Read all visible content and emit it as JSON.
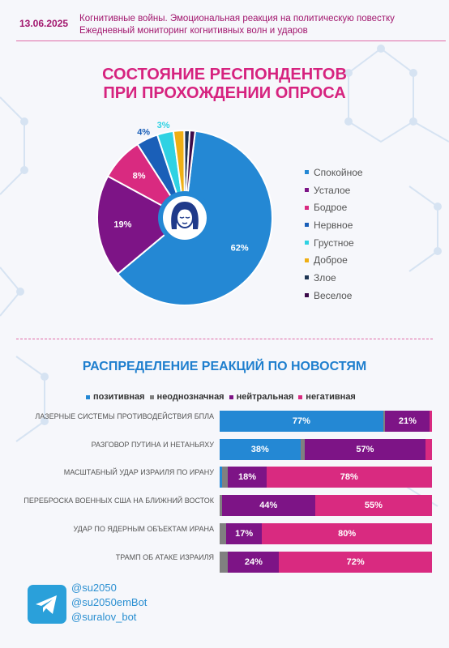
{
  "header": {
    "date": "13.06.2025",
    "line1": "Когнитивные войны. Эмоциональная реакция на политическую повестку",
    "line2": "Ежедневный мониторинг когнитивных волн и ударов"
  },
  "colors": {
    "blue": "#2488d4",
    "purple": "#7d1486",
    "pink": "#d92a80",
    "gray": "#808080",
    "navy": "#1a5fb8",
    "cyan": "#2fd2e3",
    "yellow": "#efaf14",
    "dark": "#1e3553",
    "darkpurple": "#3c0b4a"
  },
  "chart_data": [
    {
      "type": "pie",
      "title_line1": "СОСТОЯНИЕ РЕСПОНДЕНТОВ",
      "title_line2": "ПРИ ПРОХОЖДЕНИИ ОПРОСА",
      "labels": [
        "Спокойное",
        "Усталое",
        "Бодрое",
        "Нервное",
        "Грустное",
        "Доброе",
        "Злое",
        "Веселое"
      ],
      "values": [
        62,
        19,
        8,
        4,
        3,
        2,
        1,
        1
      ],
      "value_labels": [
        "62%",
        "19%",
        "8%",
        "4%",
        "3%",
        "",
        "",
        ""
      ],
      "colors": [
        "#2488d4",
        "#7d1486",
        "#d92a80",
        "#1a5fb8",
        "#2fd2e3",
        "#efaf14",
        "#1e3553",
        "#3c0b4a"
      ],
      "legend_position": "right"
    },
    {
      "type": "bar",
      "orientation": "horizontal",
      "stacked": true,
      "title": "РАСПРЕДЕЛЕНИЕ РЕАКЦИЙ ПО НОВОСТЯМ",
      "series_names": [
        "позитивная",
        "неоднозначная",
        "нейтральная",
        "негативная"
      ],
      "series_colors": [
        "#2488d4",
        "#808080",
        "#7d1486",
        "#d92a80"
      ],
      "categories": [
        "Лазерные системы противодействия БПЛА",
        "Разговор Путина и Нетаньяху",
        "Масштабный удар Израиля по Ирану",
        "Переброска военных США на Ближний Восток",
        "Удар по ядерным объектам Ирана",
        "Трамп об атаке Израиля"
      ],
      "values": [
        [
          77,
          1,
          21,
          1
        ],
        [
          38,
          2,
          57,
          3
        ],
        [
          1,
          3,
          18,
          78
        ],
        [
          0,
          1,
          44,
          55
        ],
        [
          0,
          3,
          17,
          80
        ],
        [
          0,
          4,
          24,
          72
        ]
      ],
      "value_labels": [
        [
          "77%",
          "",
          "21%",
          ""
        ],
        [
          "38%",
          "",
          "57%",
          ""
        ],
        [
          "",
          "",
          "18%",
          "78%"
        ],
        [
          "",
          "",
          "44%",
          "55%"
        ],
        [
          "",
          "",
          "17%",
          "80%"
        ],
        [
          "",
          "",
          "24%",
          "72%"
        ]
      ]
    }
  ],
  "footer": {
    "icon": "telegram-icon",
    "links": [
      "@su2050",
      "@su2050emBot",
      "@suralov_bot"
    ]
  }
}
